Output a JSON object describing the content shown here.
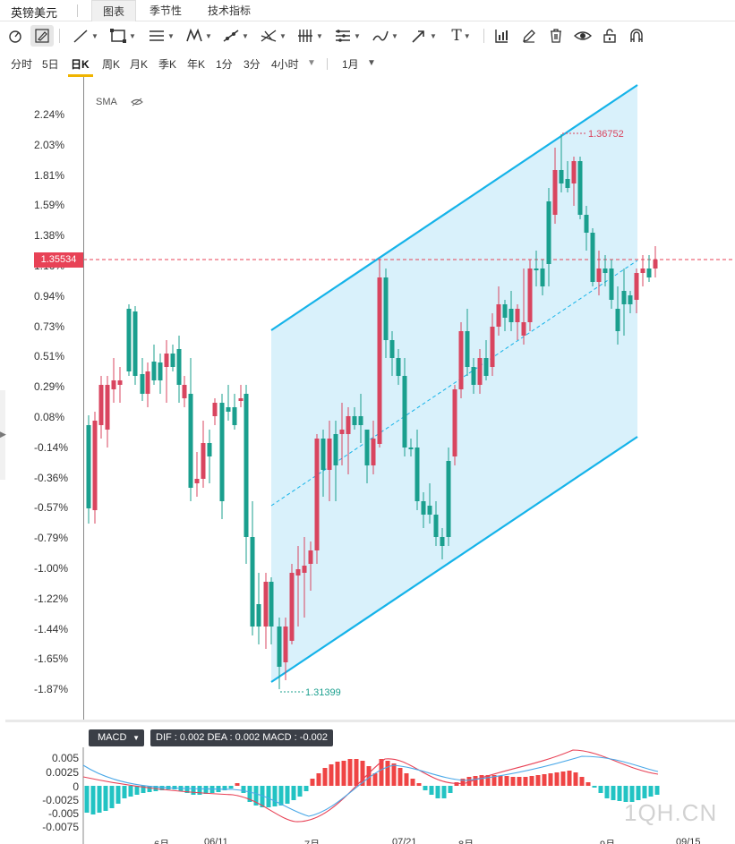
{
  "header": {
    "symbol": "英镑美元",
    "tabs": [
      {
        "label": "图表",
        "active": true
      },
      {
        "label": "季节性",
        "active": false
      },
      {
        "label": "技术指标",
        "active": false
      }
    ]
  },
  "toolbar": {
    "icons": [
      "cursor-icon",
      "pencil-icon",
      "line-icon",
      "rectangle-icon",
      "parallel-lines-icon",
      "pattern-icon",
      "trend-icon",
      "fork-icon",
      "bars-icon",
      "fib-icon",
      "brush-icon",
      "arrow-icon",
      "text-icon",
      "chart-settings-icon",
      "edit-icon",
      "trash-icon",
      "eye-icon",
      "lock-icon",
      "magnet-icon"
    ],
    "text_tool_glyph": "T"
  },
  "periods": {
    "items": [
      "分时",
      "5日",
      "日K",
      "周K",
      "月K",
      "季K",
      "年K",
      "1分",
      "3分",
      "4小时"
    ],
    "active": "日K",
    "range": "1月"
  },
  "main_chart": {
    "indicator": "SMA",
    "y_labels": [
      "2.24%",
      "2.03%",
      "1.81%",
      "1.59%",
      "1.38%",
      "1.16%",
      "0.94%",
      "0.73%",
      "0.51%",
      "0.29%",
      "0.08%",
      "-0.14%",
      "-0.36%",
      "-0.57%",
      "-0.79%",
      "-1.00%",
      "-1.22%",
      "-1.44%",
      "-1.65%",
      "-1.87%"
    ],
    "current_price": "1.35534",
    "high_label": "1.36752",
    "low_label": "1.31399"
  },
  "macd": {
    "name": "MACD",
    "values_text": "DIF : 0.002  DEA : 0.002  MACD : -0.002",
    "y_labels": [
      "0.005",
      "0.0025",
      "0",
      "-0.0025",
      "-0.005",
      "-0.0075"
    ]
  },
  "x_labels": [
    "6月",
    "06/11",
    "7月",
    "07/21",
    "8月",
    "9月",
    "09/15"
  ],
  "watermark": "1QH.CN",
  "colors": {
    "up": "#d9455f",
    "down": "#1a9f8e",
    "channel": "#15b3e9",
    "channel_fill": "#d9f1fb",
    "price_line": "#e84256",
    "macd_pos": "#ef4444",
    "macd_neg": "#22c3c3"
  }
}
